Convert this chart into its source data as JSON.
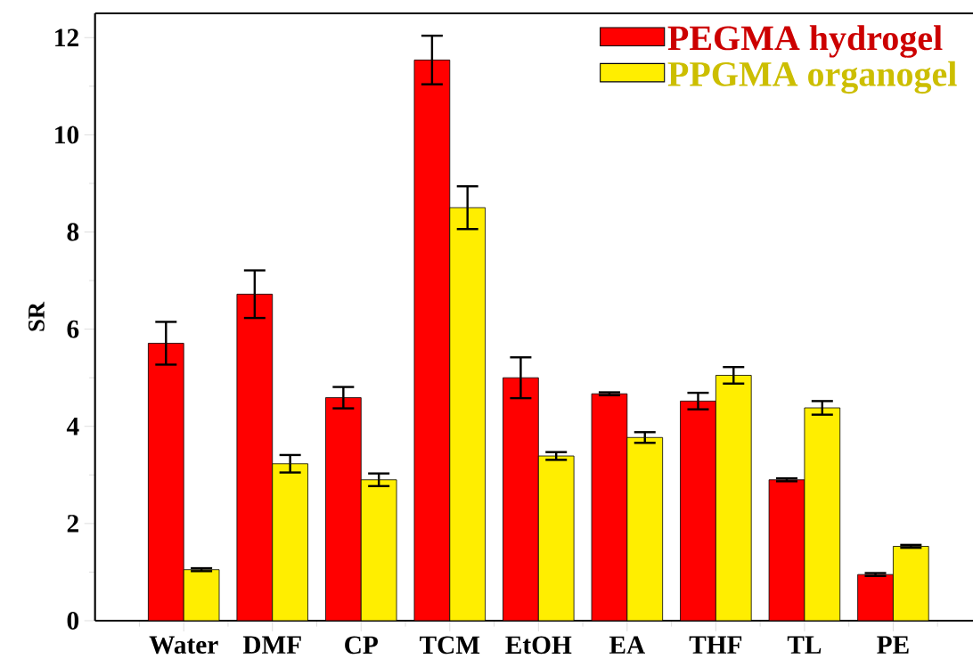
{
  "chart_data": {
    "type": "bar",
    "ylabel": "SR",
    "categories": [
      "Water",
      "DMF",
      "CP",
      "TCM",
      "EtOH",
      "EA",
      "THF",
      "TL",
      "PE"
    ],
    "series": [
      {
        "name": "PEGMA hydrogel",
        "color": "#ff0000",
        "values": [
          5.71,
          6.72,
          4.59,
          11.54,
          5.0,
          4.67,
          4.52,
          2.9,
          0.95
        ],
        "errors": [
          0.44,
          0.49,
          0.22,
          0.5,
          0.42,
          0.03,
          0.17,
          0.03,
          0.03
        ]
      },
      {
        "name": "PPGMA organogel",
        "color": "#ffee00",
        "values": [
          1.05,
          3.23,
          2.9,
          8.5,
          3.39,
          3.77,
          5.05,
          4.38,
          1.53
        ],
        "errors": [
          0.03,
          0.18,
          0.13,
          0.44,
          0.08,
          0.11,
          0.17,
          0.14,
          0.03
        ]
      }
    ],
    "ylim": [
      0,
      12.5
    ],
    "yticks": [
      0,
      2,
      4,
      6,
      8,
      10,
      12
    ],
    "grid": false,
    "legend": "top right"
  }
}
